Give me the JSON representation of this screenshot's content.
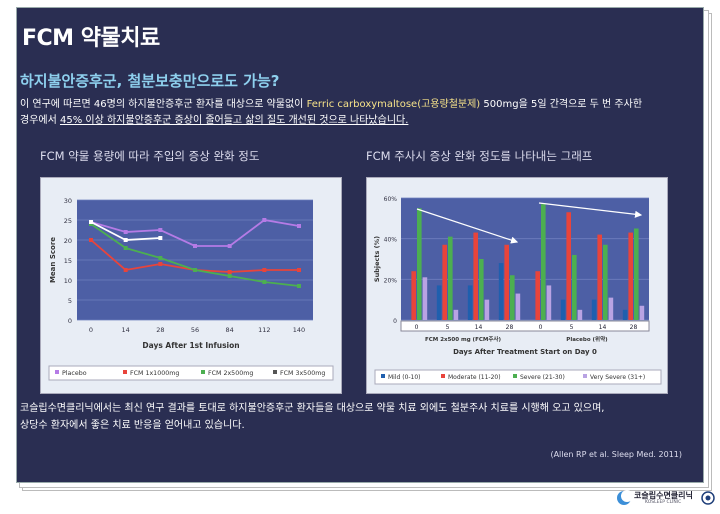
{
  "slide": {
    "title": "FCM 약물치료",
    "subtitle": "하지불안증후군, 철분보충만으로도 가능?",
    "para_1": "이 연구에 따르면 46명의 하지불안증후군 환자를 대상으로 약물없이 ",
    "para_hl": "Ferric carboxymaltose(고용량철분제)",
    "para_2": " 500mg을 5일 간격으로 두 번 주사한",
    "para_3": "경우에서 ",
    "para_u": "45% 이상 하지불안증후군 증상이 줄어들고 삶의 질도 개선된 것으로 나타났습니다.",
    "footer_1": "코슬립수면클리닉에서는 최신 연구 결과를 토대로 하지불안증후군 환자들을 대상으로 약물 치료 외에도 철분주사 치료를 시행해 오고 있으며,",
    "footer_2": "상당수 환자에서 좋은 치료 반응을 얻어내고 있습니다.",
    "citation": "(Allen RP et al. Sleep Med. 2011)",
    "logo_text": "코슬립수면클리닉",
    "logo_sub": "KOSLEEP CLINIC"
  },
  "colors": {
    "background": "#2a2e52",
    "subtitle": "#8ed0ee",
    "highlight": "#f7e38a",
    "placebo": "#b57be6",
    "fcm1x": "#e8443b",
    "fcm2x": "#4caf50",
    "fcm3x": "#ffffff",
    "mild": "#1f5fae",
    "moderate": "#e8443b",
    "severe": "#4caf50",
    "very_severe": "#b9a3e3"
  },
  "chart_data": [
    {
      "type": "line",
      "title": "FCM 약물 용량에 따라 주입의 증상 완화 정도",
      "xlabel": "Days After 1st Infusion",
      "ylabel": "Mean Score",
      "x": [
        0,
        14,
        28,
        56,
        84,
        112,
        140
      ],
      "ylim": [
        0,
        30
      ],
      "yticks": [
        0,
        5,
        10,
        15,
        20,
        25,
        30
      ],
      "grid": true,
      "legend_position": "bottom",
      "series": [
        {
          "name": "Placebo",
          "color": "#b57be6",
          "values": [
            24.5,
            22,
            22.5,
            18.5,
            18.5,
            25,
            23.5
          ]
        },
        {
          "name": "FCM 1x1000mg",
          "color": "#e8443b",
          "values": [
            20,
            12.5,
            14,
            12.5,
            12,
            12.5,
            12.5
          ]
        },
        {
          "name": "FCM 2x500mg",
          "color": "#4caf50",
          "values": [
            24,
            18,
            15.5,
            12.5,
            11,
            9.5,
            8.5
          ]
        },
        {
          "name": "FCM 3x500mg",
          "color": "#ffffff",
          "values": [
            24.5,
            20,
            20.5,
            null,
            null,
            null,
            null
          ]
        }
      ]
    },
    {
      "type": "bar",
      "title": "FCM 주사시 증상 완화 정도를 나타내는 그래프",
      "xlabel": "Days After Treatment Start on Day 0",
      "ylabel": "Subjects (%)",
      "ylim": [
        0,
        60
      ],
      "yticks": [
        "0",
        "20%",
        "40%",
        "60%"
      ],
      "groups": [
        "FCM 2x500 mg (FCM주사)",
        "Placebo (위약)"
      ],
      "categories": [
        "0",
        "5",
        "14",
        "28",
        "0",
        "5",
        "14",
        "28"
      ],
      "legend_position": "bottom",
      "series": [
        {
          "name": "Mild (0-10)",
          "color": "#1f5fae",
          "values": [
            0,
            17,
            17,
            28,
            0,
            10,
            10,
            5
          ]
        },
        {
          "name": "Moderate (11-20)",
          "color": "#e8443b",
          "values": [
            24,
            37,
            43,
            37,
            24,
            53,
            42,
            43
          ]
        },
        {
          "name": "Severe (21-30)",
          "color": "#4caf50",
          "values": [
            55,
            41,
            30,
            22,
            57,
            32,
            37,
            45
          ]
        },
        {
          "name": "Very Severe (31+)",
          "color": "#b9a3e3",
          "values": [
            21,
            5,
            10,
            13,
            17,
            5,
            11,
            7
          ]
        }
      ]
    }
  ]
}
